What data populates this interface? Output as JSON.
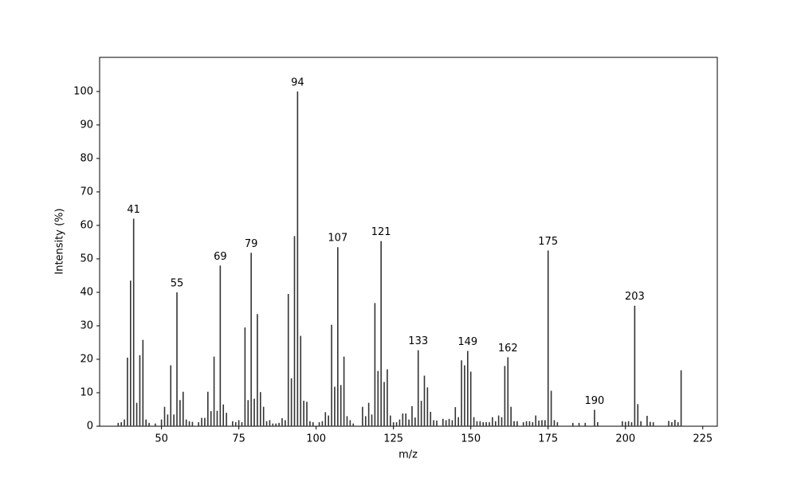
{
  "chart_data": {
    "type": "bar",
    "x_label": "m/z",
    "y_label": "Intensity (%)",
    "x": [
      36,
      37,
      38,
      39,
      40,
      41,
      42,
      43,
      44,
      45,
      46,
      48,
      50,
      51,
      52,
      53,
      54,
      55,
      56,
      57,
      58,
      59,
      60,
      62,
      63,
      64,
      65,
      66,
      67,
      68,
      69,
      70,
      71,
      73,
      74,
      75,
      76,
      77,
      78,
      79,
      80,
      81,
      82,
      83,
      84,
      85,
      86,
      87,
      88,
      89,
      90,
      91,
      92,
      93,
      94,
      95,
      96,
      97,
      98,
      99,
      101,
      102,
      103,
      104,
      105,
      106,
      107,
      108,
      109,
      110,
      111,
      112,
      115,
      116,
      117,
      118,
      119,
      120,
      121,
      122,
      123,
      124,
      125,
      126,
      127,
      128,
      129,
      130,
      131,
      132,
      133,
      134,
      135,
      136,
      137,
      138,
      139,
      141,
      142,
      143,
      144,
      145,
      146,
      147,
      148,
      149,
      150,
      151,
      152,
      153,
      154,
      155,
      156,
      157,
      158,
      159,
      160,
      161,
      162,
      163,
      164,
      165,
      167,
      168,
      169,
      170,
      171,
      172,
      173,
      174,
      175,
      176,
      177,
      178,
      183,
      185,
      187,
      190,
      191,
      199,
      200,
      201,
      202,
      203,
      204,
      205,
      207,
      208,
      209,
      214,
      215,
      216,
      217,
      218
    ],
    "values": [
      1,
      1.2,
      2,
      20.5,
      43.5,
      62,
      7,
      21.2,
      25.8,
      2,
      1,
      0.8,
      2,
      5.8,
      3.5,
      18.2,
      3.5,
      40,
      7.8,
      10.3,
      2,
      1.5,
      1.3,
      1.2,
      2.5,
      2.5,
      10.3,
      4.5,
      20.8,
      4.6,
      48,
      6.5,
      4,
      1.5,
      1.2,
      1.8,
      1.2,
      29.5,
      7.8,
      51.8,
      8.2,
      33.5,
      10.2,
      5.8,
      1.5,
      1.8,
      0.8,
      0.8,
      1,
      2.4,
      1.8,
      39.5,
      14.3,
      56.8,
      100,
      27,
      7.6,
      7.3,
      1.5,
      1.2,
      1.2,
      1.5,
      4.2,
      3.2,
      30.3,
      11.8,
      53.5,
      12.3,
      20.8,
      3,
      1.8,
      0.8,
      5.8,
      3,
      7,
      3.5,
      36.8,
      16.5,
      55.3,
      13.2,
      17,
      3.2,
      1.2,
      1.2,
      2,
      3.8,
      3.8,
      2,
      6,
      2.6,
      22.7,
      7.6,
      15.1,
      11.6,
      4.3,
      1.8,
      1.7,
      2.2,
      1.8,
      2.2,
      1.8,
      5.7,
      2.7,
      19.7,
      18.2,
      22.5,
      16.3,
      2.7,
      1.5,
      1.5,
      1.2,
      1.2,
      1.2,
      2.7,
      1.5,
      3.2,
      2.7,
      18,
      20.6,
      5.8,
      1.5,
      1.5,
      1.2,
      1.5,
      1.5,
      1.2,
      3.2,
      1.7,
      1.8,
      1.8,
      52.5,
      10.6,
      1.8,
      1.2,
      1,
      1,
      1,
      4.9,
      1.2,
      1.5,
      1.3,
      1.5,
      1.2,
      36,
      6.6,
      1.5,
      3.1,
      1.3,
      1.2,
      1.6,
      1.2,
      1.9,
      1.2,
      16.7
    ],
    "peak_labels": [
      41,
      55,
      69,
      79,
      94,
      107,
      121,
      133,
      149,
      162,
      175,
      190,
      203
    ],
    "color": "#333333",
    "xlim": [
      30,
      229.7
    ],
    "ylim": [
      0,
      110.2
    ],
    "xticks": [
      50,
      75,
      100,
      125,
      150,
      175,
      200,
      225
    ],
    "yticks": [
      0,
      10,
      20,
      30,
      40,
      50,
      60,
      70,
      80,
      90,
      100
    ]
  }
}
